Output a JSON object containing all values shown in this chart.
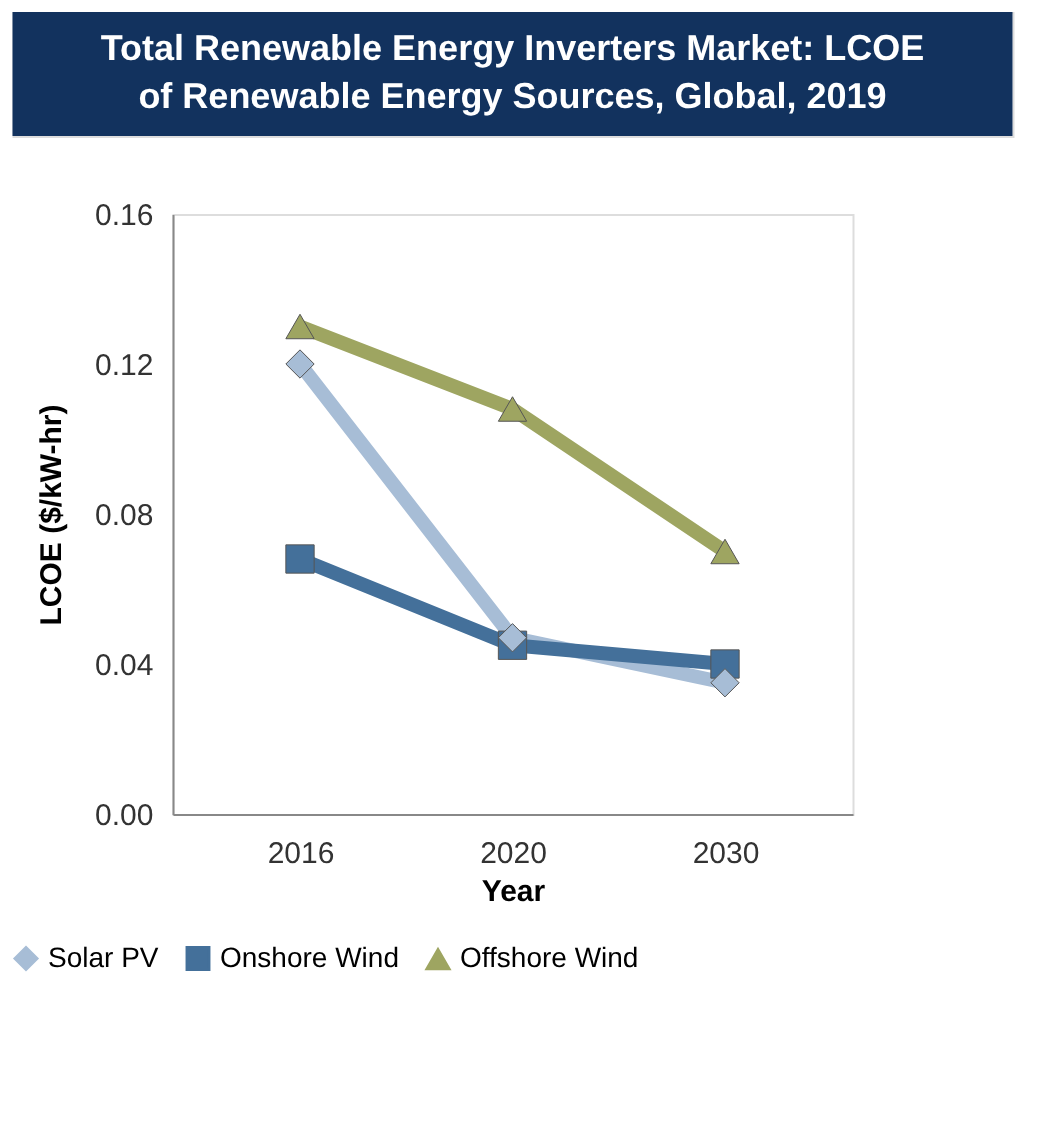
{
  "chart_data": {
    "type": "line",
    "title": "Total Renewable Energy Inverters Market: LCOE\nof Renewable Energy Sources, Global, 2019",
    "xlabel": "Year",
    "ylabel": "LCOE ($/kW-hr)",
    "categories": [
      "2016",
      "2020",
      "2030"
    ],
    "series": [
      {
        "name": "Solar PV",
        "color": "#a7bdd6",
        "marker": "diamond",
        "values": [
          0.12,
          0.047,
          0.035
        ]
      },
      {
        "name": "Onshore Wind",
        "color": "#44709a",
        "marker": "square",
        "values": [
          0.068,
          0.045,
          0.04
        ]
      },
      {
        "name": "Offshore Wind",
        "color": "#9ea561",
        "marker": "triangle",
        "values": [
          0.13,
          0.108,
          0.07
        ]
      }
    ],
    "ylim": [
      0,
      0.16
    ],
    "yticks": [
      {
        "value": 0,
        "label": "0.00"
      },
      0.04,
      0.08,
      0.12,
      0.16
    ],
    "grid": false,
    "legend": "bottom",
    "line_style": "solid"
  }
}
